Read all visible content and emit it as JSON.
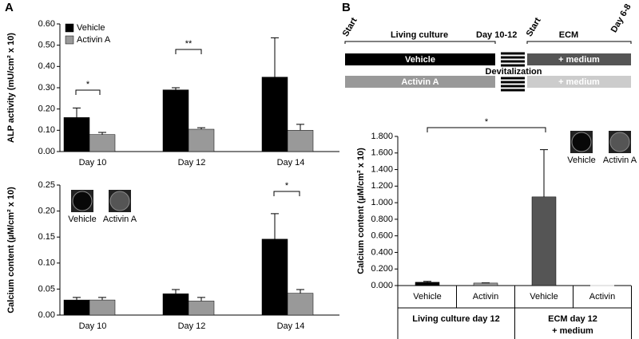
{
  "panel_labels": [
    "A",
    "B"
  ],
  "diagram": {
    "start_left": "Start",
    "living": "Living culture",
    "day_left": "Day 10-12",
    "start_right": "Start",
    "ecm": "ECM",
    "day_right": "Day 6-8",
    "bar_vehicle": "Vehicle",
    "bar_activin": "Activin A",
    "devitalization": "Devitalization",
    "medium_top": "+ medium",
    "medium_bottom": "+ medium"
  },
  "chart_data": [
    {
      "type": "bar",
      "ylabel": "ALP activity (mU/cm² x 10)",
      "categories": [
        "Day 10",
        "Day 12",
        "Day 14"
      ],
      "series": [
        {
          "name": "Vehicle",
          "color": "#000000",
          "values": [
            0.16,
            0.29,
            0.35
          ],
          "errors": [
            0.045,
            0.01,
            0.185
          ]
        },
        {
          "name": "Activin A",
          "color": "#999999",
          "values": [
            0.08,
            0.105,
            0.1
          ],
          "errors": [
            0.01,
            0.007,
            0.028
          ]
        }
      ],
      "ylim": [
        0,
        0.6
      ],
      "yticks": [
        {
          "value": 0,
          "label": "0.00"
        },
        {
          "value": 0.1,
          "label": "0.10"
        },
        {
          "value": 0.2,
          "label": "0.20"
        },
        {
          "value": 0.3,
          "label": "0.30"
        },
        {
          "value": 0.4,
          "label": "0.40"
        },
        {
          "value": 0.5,
          "label": "0.50"
        },
        {
          "value": 0.6,
          "label": "0.60"
        }
      ],
      "annotations": [
        "*",
        "**"
      ]
    },
    {
      "type": "bar",
      "ylabel": "Calcium content (µM/cm² x 10)",
      "categories": [
        "Day 10",
        "Day 12",
        "Day 14"
      ],
      "series": [
        {
          "name": "Vehicle",
          "color": "#000000",
          "values": [
            0.029,
            0.041,
            0.146
          ],
          "errors": [
            0.005,
            0.008,
            0.049
          ]
        },
        {
          "name": "Activin A",
          "color": "#999999",
          "values": [
            0.029,
            0.027,
            0.042
          ],
          "errors": [
            0.005,
            0.007,
            0.007
          ]
        }
      ],
      "ylim": [
        0,
        0.25
      ],
      "yticks": [
        {
          "value": 0,
          "label": "0.00"
        },
        {
          "value": 0.05,
          "label": "0.05"
        },
        {
          "value": 0.1,
          "label": "0.10"
        },
        {
          "value": 0.15,
          "label": "0.15"
        },
        {
          "value": 0.2,
          "label": "0.20"
        },
        {
          "value": 0.25,
          "label": "0.25"
        }
      ],
      "annotations": [
        "*"
      ],
      "image_labels": [
        "Vehicle",
        "Activin A"
      ]
    },
    {
      "type": "bar",
      "ylabel": "Calcium content (µM/cm² x 10)",
      "categories": [
        "Vehicle",
        "Activin",
        "Vehicle",
        "Activin"
      ],
      "groups": [
        [
          "Living culture day 12"
        ],
        [
          "ECM day 12",
          "+ medium"
        ]
      ],
      "values": [
        0.04,
        0.03,
        1.07,
        0
      ],
      "errors": [
        0.01,
        0.003,
        0.57,
        0
      ],
      "colors": [
        "#000000",
        "#999999",
        "#555555",
        "#cccccc"
      ],
      "ylim": [
        0,
        1.8
      ],
      "yticks": [
        {
          "value": 0,
          "label": "0.000"
        },
        {
          "value": 0.2,
          "label": "0.200"
        },
        {
          "value": 0.4,
          "label": "0.400"
        },
        {
          "value": 0.6,
          "label": "0.600"
        },
        {
          "value": 0.8,
          "label": "0.800"
        },
        {
          "value": 1.0,
          "label": "1.000"
        },
        {
          "value": 1.2,
          "label": "1.200"
        },
        {
          "value": 1.4,
          "label": "1.400"
        },
        {
          "value": 1.6,
          "label": "1.600"
        },
        {
          "value": 1.8,
          "label": "1.800"
        }
      ],
      "annotations": [
        "*"
      ],
      "image_labels": [
        "Vehicle",
        "Activin A"
      ]
    }
  ]
}
